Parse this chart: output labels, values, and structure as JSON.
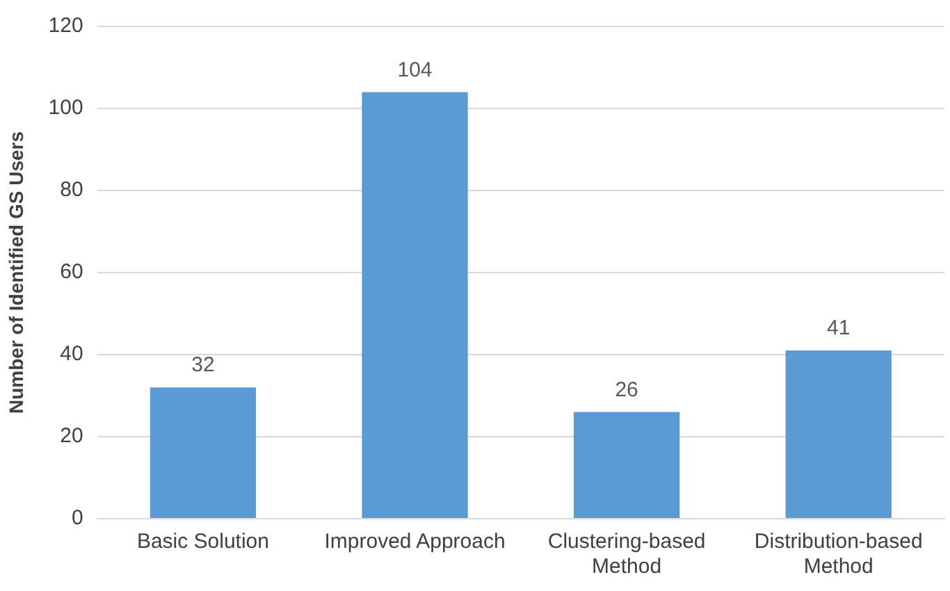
{
  "chart_data": {
    "type": "bar",
    "ylabel": "Number of Identified GS Users",
    "categories": [
      "Basic Solution",
      "Improved Approach",
      "Clustering-based Method",
      "Distribution-based Method"
    ],
    "values": [
      32,
      104,
      26,
      41
    ],
    "color": "#5b9bd5",
    "ylim": [
      0,
      120
    ],
    "yticks": [
      0,
      20,
      40,
      60,
      80,
      100,
      120
    ],
    "grid": "y",
    "data_labels": true
  }
}
